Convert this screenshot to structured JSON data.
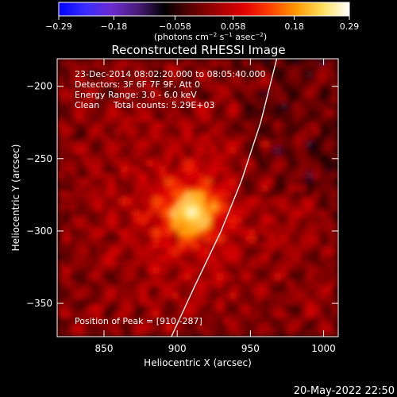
{
  "chart_data": {
    "type": "heatmap",
    "title": "Reconstructed RHESSI Image",
    "xlabel": "Heliocentric X (arcsec)",
    "ylabel": "Heliocentric Y (arcsec)",
    "xlim": [
      818,
      1010
    ],
    "ylim": [
      -373,
      -181
    ],
    "x_ticks": [
      850,
      900,
      950,
      1000
    ],
    "y_ticks": [
      -200,
      -250,
      -300,
      -350
    ],
    "x_tick_labels": [
      "850",
      "900",
      "950",
      "1000"
    ],
    "y_tick_labels": [
      "−200",
      "−250",
      "−300",
      "−350"
    ],
    "colorbar": {
      "range": [
        -0.29,
        0.29
      ],
      "ticks": [
        -0.29,
        -0.18,
        -0.058,
        0.058,
        0.18,
        0.29
      ],
      "tick_labels": [
        "−0.29",
        "−0.18",
        "−0.058",
        "0.058",
        "0.18",
        "0.29"
      ],
      "units_prefix": "(photons cm",
      "units_exp1": "−2",
      "units_mid": " s",
      "units_exp2": "−1",
      "units_mid2": " asec",
      "units_exp3": "−2",
      "units_suffix": ")",
      "colormap": [
        "#0000ff",
        "#3a2cff",
        "#6a2bd0",
        "#4a1c7a",
        "#000000",
        "#5a0000",
        "#a00000",
        "#e00000",
        "#ff4000",
        "#ff9a00",
        "#ffe060",
        "#ffffff"
      ]
    },
    "annotations": [
      "23-Dec-2014 08:02:20.000 to 08:05:40.000",
      "Detectors: 3F 6F 7F 9F, Att 0",
      "Energy Range: 3.0 - 6.0 keV",
      "Clean     Total counts: 5.29E+03"
    ],
    "peak_label": "Position of Peak = [910,-287]",
    "peak": {
      "x": 910,
      "y": -287,
      "value": 0.29
    },
    "limb_curve": [
      [
        896,
        -373
      ],
      [
        912,
        -338
      ],
      [
        930,
        -300
      ],
      [
        944,
        -265
      ],
      [
        957,
        -225
      ],
      [
        968,
        -181
      ]
    ]
  },
  "footer_date": "20-May-2022 22:50"
}
